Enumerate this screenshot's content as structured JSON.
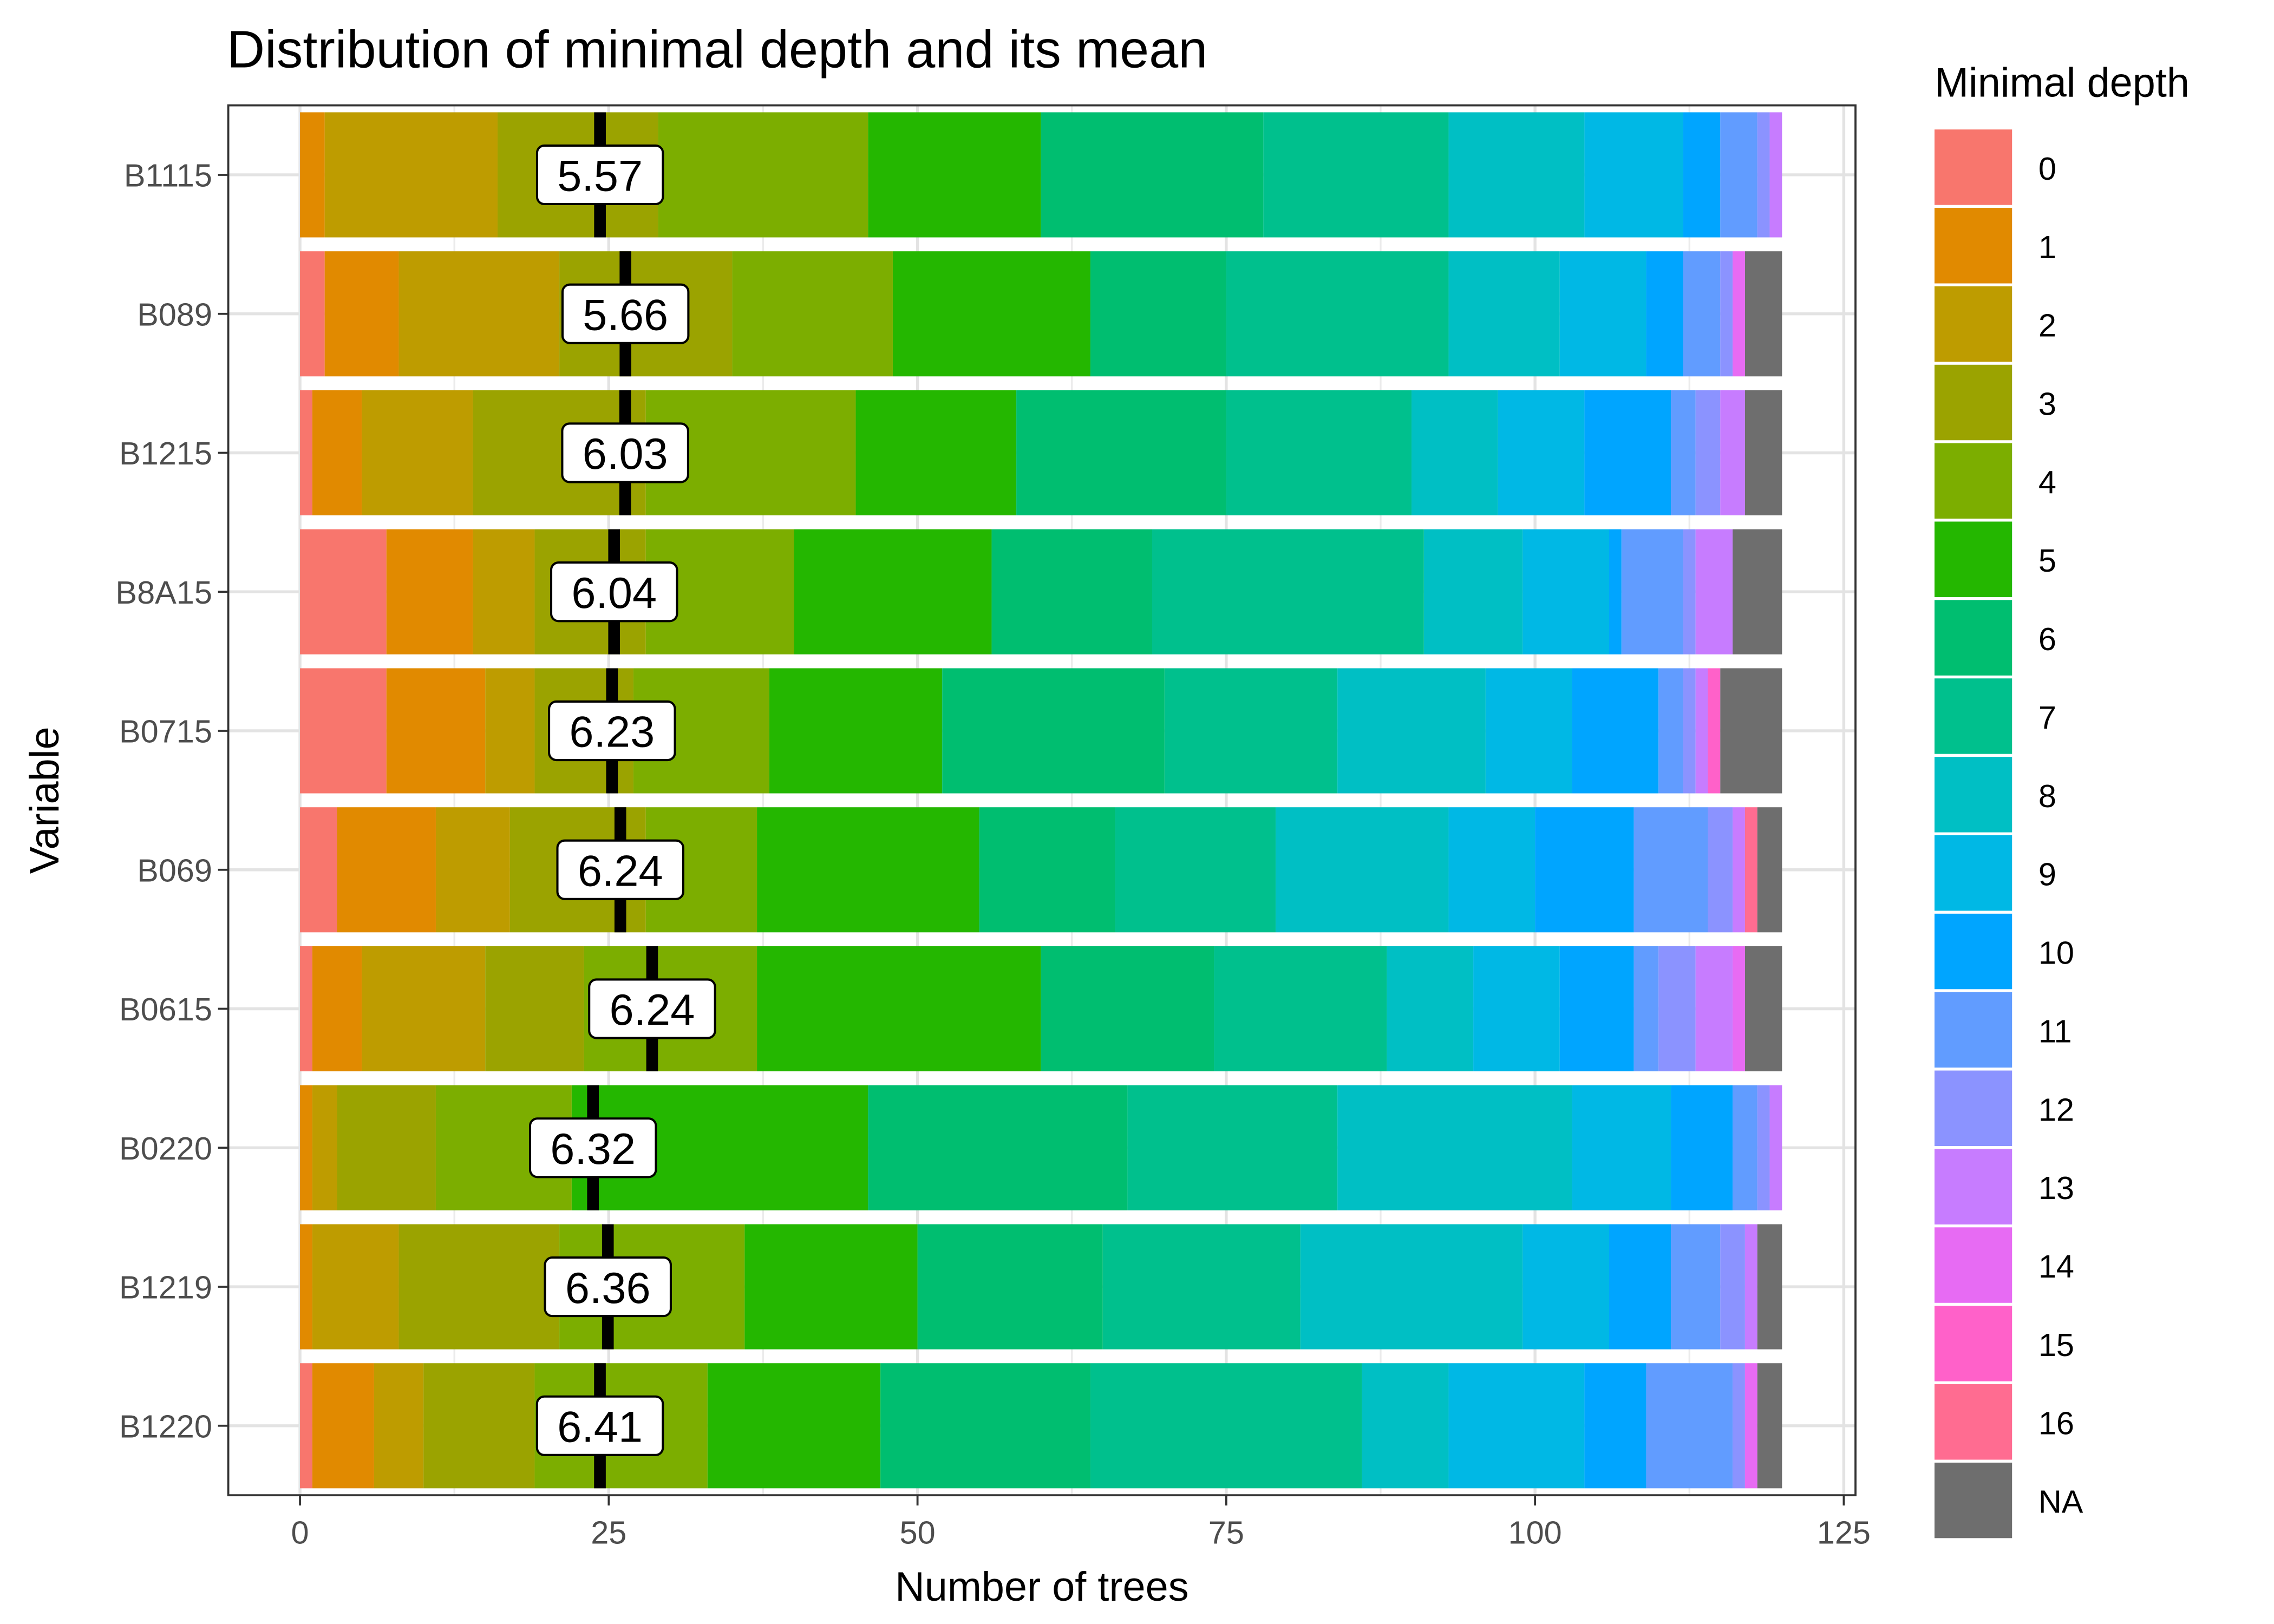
{
  "chart_data": {
    "type": "bar",
    "orientation": "horizontal",
    "stacked": true,
    "title": "Distribution of minimal depth and its mean",
    "xlabel": "Number of trees",
    "ylabel": "Variable",
    "xlim": [
      0,
      125
    ],
    "xticks": [
      0,
      25,
      50,
      75,
      100,
      125
    ],
    "grid": true,
    "legend": {
      "title": "Minimal depth",
      "placement": "right",
      "levels": [
        "0",
        "1",
        "2",
        "3",
        "4",
        "5",
        "6",
        "7",
        "8",
        "9",
        "10",
        "11",
        "12",
        "13",
        "14",
        "15",
        "16",
        "NA"
      ],
      "colors": [
        "#F8766D",
        "#E18A00",
        "#BE9C00",
        "#9BA300",
        "#7CAE00",
        "#24B700",
        "#00BE70",
        "#00C08D",
        "#00BFC4",
        "#00B8E5",
        "#00A5FF",
        "#619CFF",
        "#8B93FF",
        "#C77CFF",
        "#E76BF3",
        "#FF61C9",
        "#FF6C91",
        "#6E6E6E"
      ]
    },
    "categories": [
      "B1115",
      "B089",
      "B1215",
      "B8A15",
      "B0715",
      "B069",
      "B0615",
      "B0220",
      "B1219",
      "B1220"
    ],
    "means": [
      5.57,
      5.66,
      6.03,
      6.04,
      6.23,
      6.24,
      6.24,
      6.32,
      6.36,
      6.41
    ],
    "mean_labels": [
      "5.57",
      "5.66",
      "6.03",
      "6.04",
      "6.23",
      "6.24",
      "6.24",
      "6.32",
      "6.36",
      "6.41"
    ],
    "series": [
      {
        "name": "0",
        "values": [
          0,
          2,
          1,
          7,
          7,
          3,
          1,
          0,
          0,
          1
        ]
      },
      {
        "name": "1",
        "values": [
          2,
          6,
          4,
          7,
          8,
          8,
          4,
          1,
          1,
          5
        ]
      },
      {
        "name": "2",
        "values": [
          14,
          13,
          9,
          5,
          4,
          6,
          10,
          2,
          7,
          4
        ]
      },
      {
        "name": "3",
        "values": [
          13,
          14,
          14,
          9,
          8,
          11,
          8,
          8,
          13,
          9
        ]
      },
      {
        "name": "4",
        "values": [
          17,
          13,
          17,
          12,
          11,
          9,
          14,
          11,
          15,
          14
        ]
      },
      {
        "name": "5",
        "values": [
          14,
          16,
          13,
          16,
          14,
          18,
          23,
          24,
          14,
          14
        ]
      },
      {
        "name": "6",
        "values": [
          18,
          11,
          17,
          13,
          18,
          11,
          14,
          21,
          15,
          17
        ]
      },
      {
        "name": "7",
        "values": [
          15,
          18,
          15,
          22,
          14,
          13,
          14,
          17,
          16,
          22
        ]
      },
      {
        "name": "8",
        "values": [
          11,
          9,
          7,
          8,
          12,
          14,
          7,
          19,
          18,
          7
        ]
      },
      {
        "name": "9",
        "values": [
          8,
          7,
          7,
          7,
          7,
          7,
          7,
          8,
          7,
          11
        ]
      },
      {
        "name": "10",
        "values": [
          3,
          3,
          7,
          1,
          7,
          8,
          6,
          5,
          5,
          5
        ]
      },
      {
        "name": "11",
        "values": [
          3,
          3,
          2,
          5,
          2,
          6,
          2,
          2,
          4,
          7
        ]
      },
      {
        "name": "12",
        "values": [
          1,
          1,
          2,
          1,
          1,
          2,
          3,
          1,
          2,
          1
        ]
      },
      {
        "name": "13",
        "values": [
          1,
          0,
          2,
          3,
          1,
          1,
          3,
          1,
          1,
          0
        ]
      },
      {
        "name": "14",
        "values": [
          0,
          1,
          0,
          0,
          0,
          0,
          1,
          0,
          0,
          1
        ]
      },
      {
        "name": "15",
        "values": [
          0,
          0,
          0,
          0,
          1,
          0,
          0,
          0,
          0,
          0
        ]
      },
      {
        "name": "16",
        "values": [
          0,
          0,
          0,
          0,
          0,
          1,
          0,
          0,
          0,
          0
        ]
      },
      {
        "name": "NA",
        "values": [
          0,
          3,
          3,
          4,
          5,
          2,
          3,
          0,
          2,
          2
        ]
      }
    ]
  }
}
